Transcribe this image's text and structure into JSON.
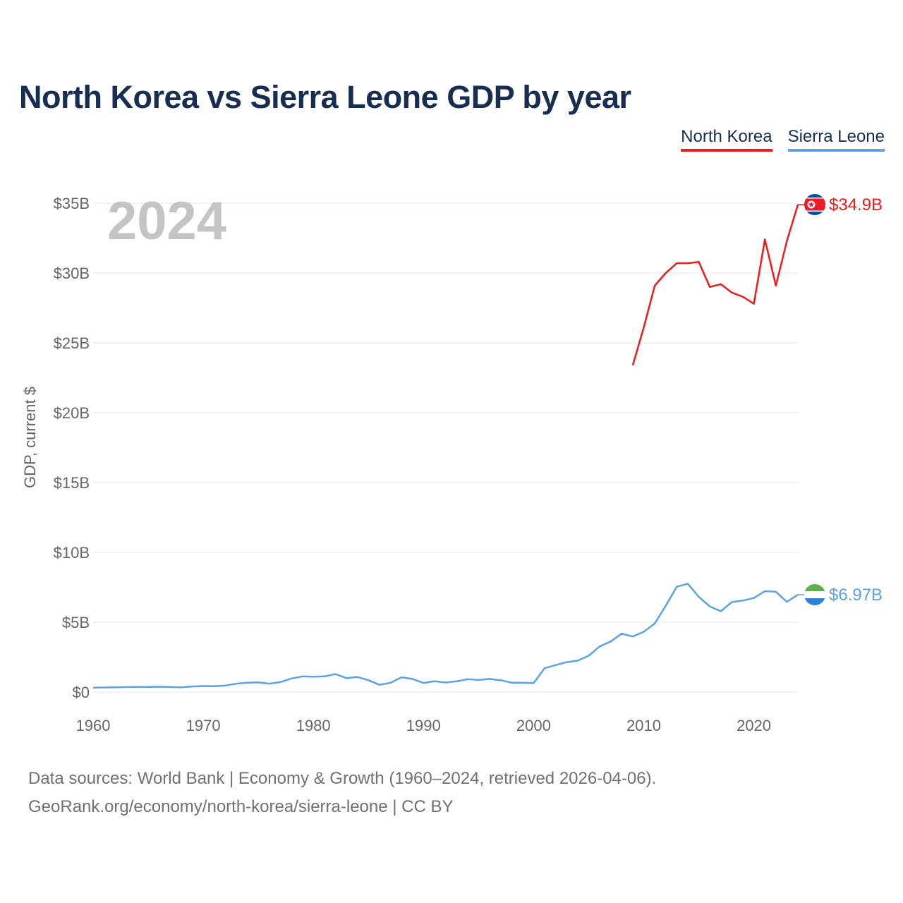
{
  "title": "North Korea vs Sierra Leone GDP by year",
  "legend": {
    "north_korea": "North Korea",
    "sierra_leone": "Sierra Leone"
  },
  "colors": {
    "north_korea": "#ee1c1c",
    "sierra_leone": "#5ba3e6",
    "grid": "#e6e6e6",
    "tick_text": "#666666",
    "year_watermark": "#c4c4c4"
  },
  "source": {
    "line1": "Data sources: World Bank | Economy & Growth (1960–2024, retrieved 2026-04-06).",
    "line2": "GeoRank.org/economy/north-korea/sierra-leone | CC BY"
  },
  "chart_data": {
    "type": "line",
    "title": "North Korea vs Sierra Leone GDP by year",
    "xlabel": "",
    "ylabel": "GDP, current $",
    "xlim": [
      1960,
      2024
    ],
    "ylim": [
      0,
      35
    ],
    "year_label": "2024",
    "x_ticks": [
      1960,
      1970,
      1980,
      1990,
      2000,
      2010,
      2020
    ],
    "y_ticks": [
      {
        "value": 0,
        "label": "$0"
      },
      {
        "value": 5,
        "label": "$5B"
      },
      {
        "value": 10,
        "label": "$10B"
      },
      {
        "value": 15,
        "label": "$15B"
      },
      {
        "value": 20,
        "label": "$20B"
      },
      {
        "value": 25,
        "label": "$25B"
      },
      {
        "value": 30,
        "label": "$30B"
      },
      {
        "value": 35,
        "label": "$35B"
      }
    ],
    "series": [
      {
        "name": "North Korea",
        "key": "north_korea",
        "end_label": "$34.9B",
        "x": [
          2009,
          2010,
          2011,
          2012,
          2013,
          2014,
          2015,
          2016,
          2017,
          2018,
          2019,
          2020,
          2021,
          2022,
          2023,
          2024
        ],
        "values": [
          23.4,
          26.1,
          29.1,
          30.0,
          30.7,
          30.7,
          30.8,
          29.0,
          29.2,
          28.6,
          28.3,
          27.8,
          32.4,
          29.1,
          32.3,
          34.9
        ]
      },
      {
        "name": "Sierra Leone",
        "key": "sierra_leone",
        "end_label": "$6.97B",
        "x": [
          1960,
          1961,
          1962,
          1963,
          1964,
          1965,
          1966,
          1967,
          1968,
          1969,
          1970,
          1971,
          1972,
          1973,
          1974,
          1975,
          1976,
          1977,
          1978,
          1979,
          1980,
          1981,
          1982,
          1983,
          1984,
          1985,
          1986,
          1987,
          1988,
          1989,
          1990,
          1991,
          1992,
          1993,
          1994,
          1995,
          1996,
          1997,
          1998,
          1999,
          2000,
          2001,
          2002,
          2003,
          2004,
          2005,
          2006,
          2007,
          2008,
          2009,
          2010,
          2011,
          2012,
          2013,
          2014,
          2015,
          2016,
          2017,
          2018,
          2019,
          2020,
          2021,
          2022,
          2023,
          2024
        ],
        "values": [
          0.32,
          0.33,
          0.34,
          0.36,
          0.37,
          0.37,
          0.38,
          0.36,
          0.34,
          0.4,
          0.43,
          0.42,
          0.47,
          0.6,
          0.67,
          0.69,
          0.6,
          0.71,
          0.97,
          1.12,
          1.1,
          1.12,
          1.29,
          1.0,
          1.08,
          0.85,
          0.52,
          0.66,
          1.06,
          0.94,
          0.65,
          0.78,
          0.68,
          0.77,
          0.92,
          0.87,
          0.94,
          0.85,
          0.67,
          0.67,
          0.64,
          1.71,
          1.93,
          2.14,
          2.25,
          2.6,
          3.27,
          3.62,
          4.18,
          3.98,
          4.32,
          4.91,
          6.18,
          7.54,
          7.76,
          6.82,
          6.13,
          5.79,
          6.44,
          6.55,
          6.73,
          7.22,
          7.18,
          6.46,
          6.97
        ]
      }
    ]
  }
}
